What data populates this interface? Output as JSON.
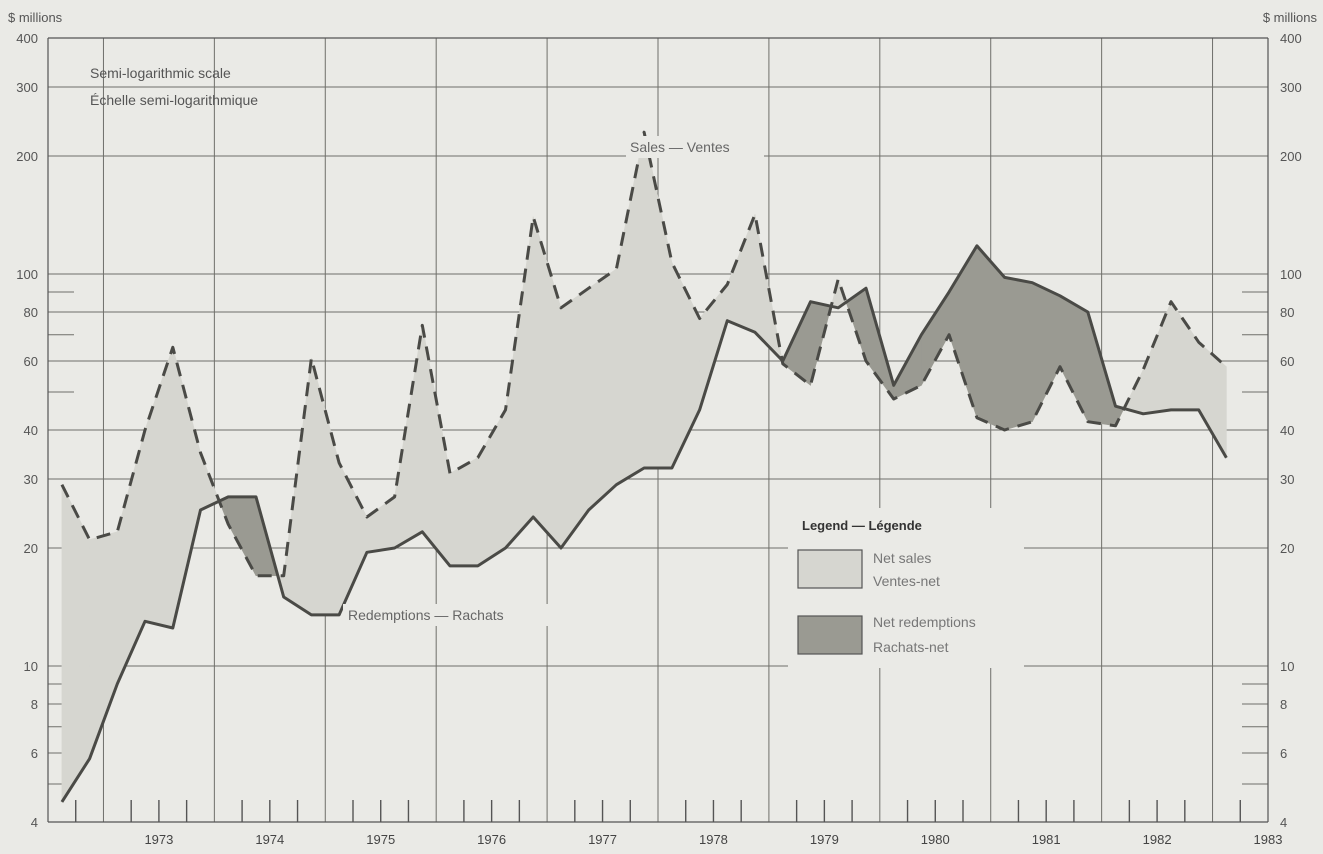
{
  "chart_data": {
    "type": "area",
    "unit_left": "$ millions",
    "unit_right": "$ millions",
    "scale_note": [
      "Semi-logarithmic scale",
      "Échelle semi-logarithmique"
    ],
    "y_scale": "log",
    "ylim": [
      4,
      400
    ],
    "y_ticks": [
      4,
      6,
      8,
      10,
      20,
      30,
      40,
      60,
      80,
      100,
      200,
      300,
      400
    ],
    "x_range": [
      1972.5,
      1983.5
    ],
    "x_ticks": [
      "1973",
      "1974",
      "1975",
      "1976",
      "1977",
      "1978",
      "1979",
      "1980",
      "1981",
      "1982",
      "1983"
    ],
    "grid": true,
    "legend_position": "center-right",
    "legend": {
      "title": "Legend — Légende",
      "items": [
        {
          "label": [
            "Net sales",
            "Ventes-net"
          ],
          "fill": "#d6d6d0"
        },
        {
          "label": [
            "Net redemptions",
            "Rachats-net"
          ],
          "fill": "#9a9a92"
        }
      ]
    },
    "series": [
      {
        "name": "Sales — Ventes",
        "style": "dashed",
        "x": [
          1972.625,
          1972.875,
          1973.125,
          1973.375,
          1973.625,
          1973.875,
          1974.125,
          1974.375,
          1974.625,
          1974.875,
          1975.125,
          1975.375,
          1975.625,
          1975.875,
          1976.125,
          1976.375,
          1976.625,
          1976.875,
          1977.125,
          1977.375,
          1977.625,
          1977.875,
          1978.125,
          1978.375,
          1978.625,
          1978.875,
          1979.125,
          1979.375,
          1979.625,
          1979.875,
          1980.125,
          1980.375,
          1980.625,
          1980.875,
          1981.125,
          1981.375,
          1981.625,
          1981.875,
          1982.125,
          1982.375,
          1982.625,
          1982.875,
          1983.125
        ],
        "values": [
          29,
          21,
          22,
          40,
          65,
          35,
          23,
          17,
          17,
          61,
          33,
          24,
          27,
          74,
          31,
          34,
          45,
          140,
          82,
          92,
          103,
          230,
          107,
          77,
          94,
          142,
          59,
          52,
          97,
          60,
          48,
          52,
          70,
          43,
          40,
          42,
          58,
          42,
          41,
          57,
          85,
          67,
          58
        ]
      },
      {
        "name": "Redemptions — Rachats",
        "style": "solid",
        "x": [
          1972.625,
          1972.875,
          1973.125,
          1973.375,
          1973.625,
          1973.875,
          1974.125,
          1974.375,
          1974.625,
          1974.875,
          1975.125,
          1975.375,
          1975.625,
          1975.875,
          1976.125,
          1976.375,
          1976.625,
          1976.875,
          1977.125,
          1977.375,
          1977.625,
          1977.875,
          1978.125,
          1978.375,
          1978.625,
          1978.875,
          1979.125,
          1979.375,
          1979.625,
          1979.875,
          1980.125,
          1980.375,
          1980.625,
          1980.875,
          1981.125,
          1981.375,
          1981.625,
          1981.875,
          1982.125,
          1982.375,
          1982.625,
          1982.875,
          1983.125
        ],
        "values": [
          4.5,
          5.8,
          9,
          13,
          12.5,
          25,
          27,
          27,
          15,
          13.5,
          13.5,
          19.5,
          20,
          22,
          18,
          18,
          20,
          24,
          20,
          25,
          29,
          32,
          32,
          45,
          76,
          71,
          60,
          85,
          82,
          92,
          52,
          70,
          90,
          118,
          98,
          95,
          88,
          80,
          46,
          44,
          45,
          45,
          34
        ]
      }
    ],
    "annotations": {
      "sales": "Sales — Ventes",
      "redemptions": "Redemptions — Rachats"
    }
  }
}
